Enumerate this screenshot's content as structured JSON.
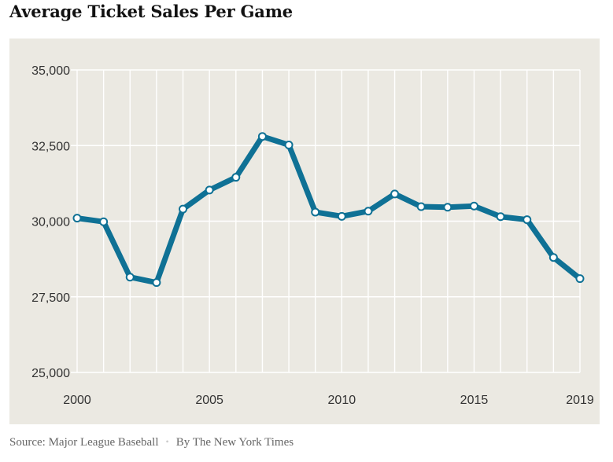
{
  "chart_data": {
    "type": "line",
    "title": "Average Ticket Sales Per Game",
    "x_tick_labels": [
      "2000",
      "2005",
      "2010",
      "2015",
      "2019"
    ],
    "y_tick_labels": [
      "35,000",
      "32,500",
      "30,000",
      "27,500",
      "25,000"
    ],
    "y_ticks": [
      35000,
      32500,
      30000,
      27500,
      25000
    ],
    "x_ticks": [
      2000,
      2005,
      2010,
      2015,
      2019
    ],
    "xlim": [
      2000,
      2019
    ],
    "ylim": [
      25000,
      35000
    ],
    "grid": true,
    "x": [
      2000,
      2001,
      2002,
      2003,
      2004,
      2005,
      2006,
      2007,
      2008,
      2009,
      2010,
      2011,
      2012,
      2013,
      2014,
      2015,
      2016,
      2017,
      2018,
      2019
    ],
    "series": [
      {
        "values": [
          30100,
          29980,
          28150,
          27970,
          30400,
          31030,
          31450,
          32800,
          32520,
          30300,
          30160,
          30330,
          30900,
          30480,
          30460,
          30500,
          30150,
          30050,
          28800,
          28100
        ]
      }
    ],
    "colors": {
      "line": "#0f7195",
      "marker_fill": "#ffffff",
      "background": "#ebe9e2",
      "grid": "#ffffff"
    }
  },
  "footer": {
    "source": "Source: Major League Baseball",
    "separator": "•",
    "byline": "By The New York Times"
  }
}
